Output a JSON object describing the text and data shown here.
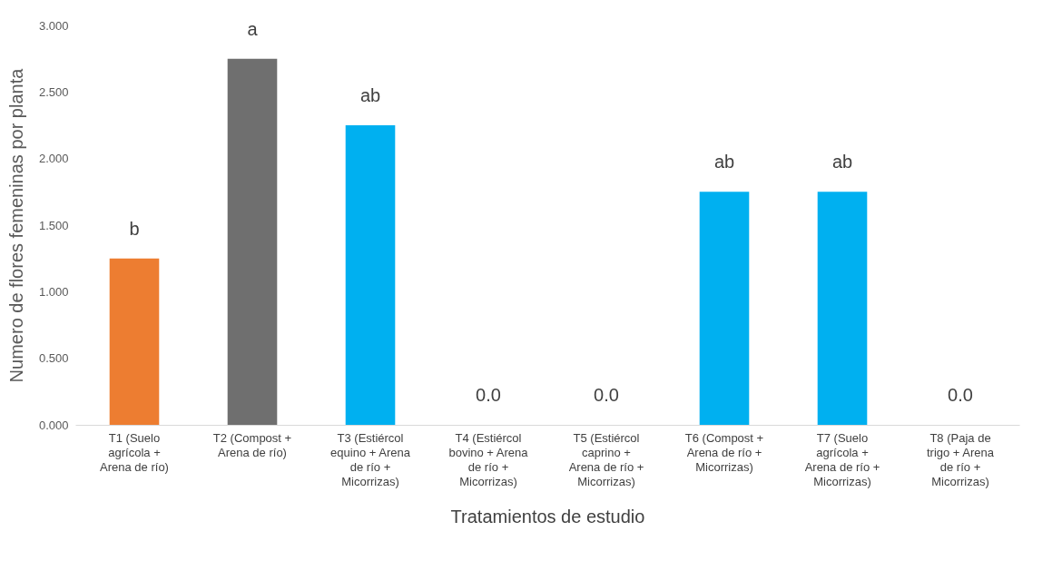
{
  "chart_data": {
    "type": "bar",
    "xlabel": "Tratamientos de estudio",
    "ylabel": "Numero de flores femeninas por planta",
    "categories": [
      "T1 (Suelo agrícola + Arena de río)",
      "T2 (Compost + Arena de río)",
      "T3 (Estiércol equino + Arena de río + Micorrizas)",
      "T4 (Estiércol bovino + Arena de río + Micorrizas)",
      "T5 (Estiércol caprino + Arena de río + Micorrizas)",
      "T6 (Compost + Arena de río + Micorrizas)",
      "T7 (Suelo agrícola + Arena de río + Micorrizas)",
      "T8 (Paja de trigo + Arena de río + Micorrizas)"
    ],
    "values": [
      1.25,
      2.75,
      2.25,
      0,
      0,
      1.75,
      1.75,
      0
    ],
    "colors": [
      "#ed7d31",
      "#6f6f6f",
      "#00b0f0",
      "#00b0f0",
      "#00b0f0",
      "#00b0f0",
      "#00b0f0",
      "#00b0f0"
    ],
    "value_labels": [
      "b",
      "a",
      "ab",
      "0.0",
      "0.0",
      "ab",
      "ab",
      "0.0"
    ],
    "ylim": [
      0,
      3
    ],
    "yticks": [
      {
        "value": 0,
        "label": "0.000"
      },
      {
        "value": 0.5,
        "label": "0.500"
      },
      {
        "value": 1,
        "label": "1.000"
      },
      {
        "value": 1.5,
        "label": "1.500"
      },
      {
        "value": 2,
        "label": "2.000"
      },
      {
        "value": 2.5,
        "label": "2.500"
      },
      {
        "value": 3,
        "label": "3.000"
      }
    ],
    "grid": false
  }
}
